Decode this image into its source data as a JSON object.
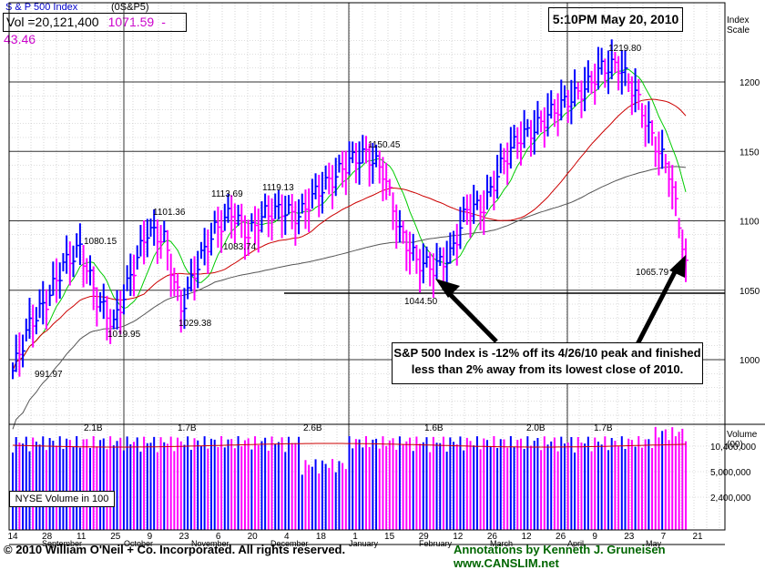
{
  "header": {
    "index_name": "S & P 500 Index",
    "symbol": "(0S&P5)",
    "volume": "Vol =20,121,400",
    "price": "1071.59",
    "change": "-43.46"
  },
  "timestamp": "5:10PM May 20, 2010",
  "index_scale_label": "Index Scale",
  "volume_scale_label": "Volume (00)",
  "nyse_label": "NYSE Volume in 100",
  "annotation": "S&P 500 Index is -12% off its 4/26/10 peak and finished less than 2% away from its lowest close of 2010.",
  "footer": {
    "copyright": "© 2010 William O'Neil + Co. Incorporated. All rights reserved.",
    "credit": "Annotations by Kenneth J. Gruneisen www.CANSLIM.net"
  },
  "colors": {
    "up": "#0000ff",
    "down": "#ff00ff",
    "ma50": "#00cc00",
    "ma200_red": "#cc0000",
    "ma_long": "#555555",
    "grid": "#999999"
  },
  "chart_data": {
    "type": "line",
    "title": "S & P 500 Index",
    "ylabel": "Index Scale",
    "ylim": [
      950,
      1240
    ],
    "price_ticks": [
      1000,
      1050,
      1100,
      1150,
      1200
    ],
    "volume_ticks": [
      "10,400,000",
      "5,000,000",
      "2,400,000"
    ],
    "date_ticks": [
      "14",
      "28",
      "11",
      "25",
      "9",
      "23",
      "6",
      "20",
      "4",
      "18",
      "1",
      "15",
      "29",
      "12",
      "26",
      "12",
      "26",
      "9",
      "23",
      "7",
      "21"
    ],
    "month_labels": [
      "September",
      "October",
      "November",
      "December",
      "January",
      "February",
      "March",
      "April",
      "May"
    ],
    "weekly_closes": [
      {
        "week": 0,
        "close": 992
      },
      {
        "week": 1,
        "close": 1025
      },
      {
        "week": 2,
        "close": 1042
      },
      {
        "week": 3,
        "close": 1068
      },
      {
        "week": 4,
        "close": 1080
      },
      {
        "week": 5,
        "close": 1044
      },
      {
        "week": 6,
        "close": 1025
      },
      {
        "week": 7,
        "close": 1060
      },
      {
        "week": 8,
        "close": 1093
      },
      {
        "week": 9,
        "close": 1087
      },
      {
        "week": 10,
        "close": 1036
      },
      {
        "week": 11,
        "close": 1069
      },
      {
        "week": 12,
        "close": 1093
      },
      {
        "week": 13,
        "close": 1106
      },
      {
        "week": 14,
        "close": 1090
      },
      {
        "week": 15,
        "close": 1105
      },
      {
        "week": 16,
        "close": 1108
      },
      {
        "week": 17,
        "close": 1103
      },
      {
        "week": 18,
        "close": 1120
      },
      {
        "week": 19,
        "close": 1130
      },
      {
        "week": 20,
        "close": 1143
      },
      {
        "week": 21,
        "close": 1148
      },
      {
        "week": 22,
        "close": 1136
      },
      {
        "week": 23,
        "close": 1092
      },
      {
        "week": 24,
        "close": 1071
      },
      {
        "week": 25,
        "close": 1066
      },
      {
        "week": 26,
        "close": 1075
      },
      {
        "week": 27,
        "close": 1109
      },
      {
        "week": 28,
        "close": 1110
      },
      {
        "week": 29,
        "close": 1139
      },
      {
        "week": 30,
        "close": 1159
      },
      {
        "week": 31,
        "close": 1166
      },
      {
        "week": 32,
        "close": 1178
      },
      {
        "week": 33,
        "close": 1187
      },
      {
        "week": 34,
        "close": 1195
      },
      {
        "week": 35,
        "close": 1210
      },
      {
        "week": 36,
        "close": 1212
      },
      {
        "week": 37,
        "close": 1192
      },
      {
        "week": 38,
        "close": 1160
      },
      {
        "week": 39,
        "close": 1136
      },
      {
        "week": 40,
        "close": 1071.59
      }
    ],
    "annotations": [
      {
        "label": "991.97",
        "value": 991.97
      },
      {
        "label": "1080.15",
        "value": 1080.15
      },
      {
        "label": "1019.95",
        "value": 1019.95
      },
      {
        "label": "1101.36",
        "value": 1101.36
      },
      {
        "label": "1029.38",
        "value": 1029.38
      },
      {
        "label": "1113.69",
        "value": 1113.69
      },
      {
        "label": "1083.74",
        "value": 1083.74
      },
      {
        "label": "1119.13",
        "value": 1119.13
      },
      {
        "label": "1150.45",
        "value": 1150.45
      },
      {
        "label": "1044.50",
        "value": 1044.5
      },
      {
        "label": "1219.80",
        "value": 1219.8
      },
      {
        "label": "1065.79",
        "value": 1065.79
      }
    ],
    "volume_labels": [
      "2.1B",
      "1.7B",
      "2.6B",
      "1.6B",
      "2.0B",
      "1.7B"
    ]
  }
}
